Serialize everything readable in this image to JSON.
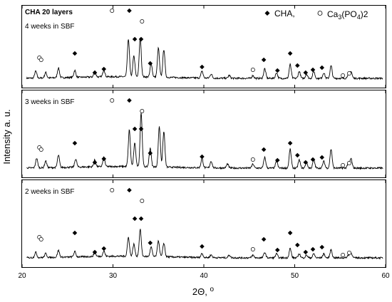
{
  "chart_data": {
    "type": "line",
    "title": "CHA 20 layers",
    "xlabel": "2Θ, º",
    "ylabel": "Intensity a. u.",
    "xlim": [
      20,
      60
    ],
    "x_ticks": [
      20,
      30,
      40,
      50,
      60
    ],
    "grid": false,
    "legend": {
      "position": "top-right",
      "entries": [
        {
          "symbol": "diamond",
          "label": "CHA,"
        },
        {
          "symbol": "circle-open",
          "label": "Ca3(PO4)2"
        }
      ]
    },
    "panels": [
      {
        "label": "4 weeks in SBF",
        "peaks": [
          {
            "x": 21.5,
            "h": 0.05
          },
          {
            "x": 22.6,
            "h": 0.04
          },
          {
            "x": 24.0,
            "h": 0.07
          },
          {
            "x": 25.8,
            "h": 0.05
          },
          {
            "x": 28.0,
            "h": 0.04
          },
          {
            "x": 29.0,
            "h": 0.05
          },
          {
            "x": 31.7,
            "h": 0.27
          },
          {
            "x": 32.3,
            "h": 0.15
          },
          {
            "x": 33.0,
            "h": 0.28
          },
          {
            "x": 34.2,
            "h": 0.1
          },
          {
            "x": 35.0,
            "h": 0.21
          },
          {
            "x": 35.6,
            "h": 0.2
          },
          {
            "x": 39.8,
            "h": 0.05
          },
          {
            "x": 40.8,
            "h": 0.03
          },
          {
            "x": 42.8,
            "h": 0.02
          },
          {
            "x": 45.4,
            "h": 0.02
          },
          {
            "x": 46.7,
            "h": 0.07
          },
          {
            "x": 48.0,
            "h": 0.04
          },
          {
            "x": 49.5,
            "h": 0.1
          },
          {
            "x": 50.5,
            "h": 0.05
          },
          {
            "x": 51.3,
            "h": 0.03
          },
          {
            "x": 52.1,
            "h": 0.05
          },
          {
            "x": 53.2,
            "h": 0.04
          },
          {
            "x": 54.0,
            "h": 0.09
          },
          {
            "x": 55.9,
            "h": 0.03
          },
          {
            "x": 56.2,
            "h": 0.05
          }
        ],
        "cha_markers": [
          25.8,
          28.0,
          29.0,
          31.8,
          32.4,
          33.1,
          34.1,
          39.8,
          46.6,
          48.1,
          49.5,
          50.3,
          51.2,
          52.0,
          53.0
        ],
        "ca3po42_markers": [
          21.9,
          22.1,
          29.9,
          33.2,
          45.4,
          55.3,
          56.0
        ]
      },
      {
        "label": "3 weeks in SBF",
        "peaks": [
          {
            "x": 21.6,
            "h": 0.07
          },
          {
            "x": 22.6,
            "h": 0.05
          },
          {
            "x": 24.0,
            "h": 0.09
          },
          {
            "x": 25.9,
            "h": 0.06
          },
          {
            "x": 28.0,
            "h": 0.05
          },
          {
            "x": 29.0,
            "h": 0.07
          },
          {
            "x": 31.8,
            "h": 0.27
          },
          {
            "x": 32.4,
            "h": 0.17
          },
          {
            "x": 33.1,
            "h": 0.4
          },
          {
            "x": 34.1,
            "h": 0.14
          },
          {
            "x": 35.1,
            "h": 0.3
          },
          {
            "x": 35.6,
            "h": 0.26
          },
          {
            "x": 39.8,
            "h": 0.07
          },
          {
            "x": 40.8,
            "h": 0.05
          },
          {
            "x": 42.6,
            "h": 0.03
          },
          {
            "x": 45.4,
            "h": 0.03
          },
          {
            "x": 46.7,
            "h": 0.08
          },
          {
            "x": 48.0,
            "h": 0.05
          },
          {
            "x": 49.5,
            "h": 0.14
          },
          {
            "x": 50.5,
            "h": 0.06
          },
          {
            "x": 51.3,
            "h": 0.04
          },
          {
            "x": 52.1,
            "h": 0.06
          },
          {
            "x": 53.2,
            "h": 0.05
          },
          {
            "x": 54.0,
            "h": 0.14
          },
          {
            "x": 55.9,
            "h": 0.04
          },
          {
            "x": 56.2,
            "h": 0.07
          }
        ],
        "cha_markers": [
          25.8,
          28.0,
          29.0,
          31.8,
          32.4,
          33.1,
          34.1,
          39.8,
          46.6,
          48.1,
          49.5,
          50.3,
          51.2,
          52.0,
          53.0
        ],
        "ca3po42_markers": [
          21.9,
          22.1,
          29.9,
          33.2,
          45.4,
          55.3,
          56.0
        ]
      },
      {
        "label": "2 weeks in SBF",
        "peaks": [
          {
            "x": 21.5,
            "h": 0.04
          },
          {
            "x": 22.6,
            "h": 0.03
          },
          {
            "x": 24.0,
            "h": 0.05
          },
          {
            "x": 25.8,
            "h": 0.04
          },
          {
            "x": 28.0,
            "h": 0.03
          },
          {
            "x": 29.0,
            "h": 0.04
          },
          {
            "x": 31.7,
            "h": 0.14
          },
          {
            "x": 32.3,
            "h": 0.09
          },
          {
            "x": 33.0,
            "h": 0.2
          },
          {
            "x": 34.2,
            "h": 0.07
          },
          {
            "x": 35.0,
            "h": 0.12
          },
          {
            "x": 35.6,
            "h": 0.1
          },
          {
            "x": 39.8,
            "h": 0.03
          },
          {
            "x": 40.8,
            "h": 0.02
          },
          {
            "x": 42.8,
            "h": 0.02
          },
          {
            "x": 45.4,
            "h": 0.02
          },
          {
            "x": 46.7,
            "h": 0.04
          },
          {
            "x": 48.0,
            "h": 0.03
          },
          {
            "x": 49.5,
            "h": 0.07
          },
          {
            "x": 50.5,
            "h": 0.03
          },
          {
            "x": 51.3,
            "h": 0.02
          },
          {
            "x": 52.1,
            "h": 0.03
          },
          {
            "x": 53.2,
            "h": 0.03
          },
          {
            "x": 54.0,
            "h": 0.06
          },
          {
            "x": 55.9,
            "h": 0.02
          },
          {
            "x": 56.2,
            "h": 0.04
          }
        ],
        "cha_markers": [
          25.8,
          28.0,
          29.0,
          31.8,
          32.4,
          33.1,
          34.1,
          39.8,
          46.6,
          48.1,
          49.5,
          50.3,
          51.2,
          52.0,
          53.0
        ],
        "ca3po42_markers": [
          21.9,
          22.1,
          29.9,
          33.2,
          45.4,
          55.3,
          56.0
        ]
      }
    ]
  }
}
